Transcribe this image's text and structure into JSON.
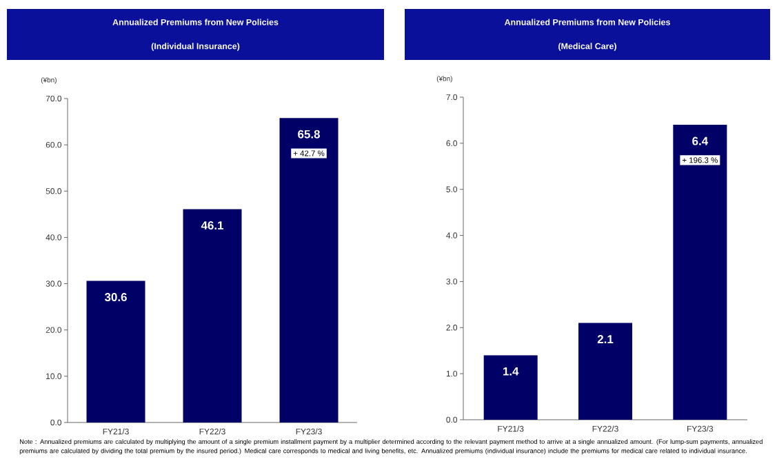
{
  "chart_data": [
    {
      "type": "bar",
      "title": "Annualized Premiums from New Policies",
      "subtitle": "(Individual Insurance)",
      "ylabel": "(¥bn)",
      "categories": [
        "FY21/3",
        "FY22/3",
        "FY23/3"
      ],
      "values": [
        30.6,
        46.1,
        65.8
      ],
      "color": "#000066",
      "ylim": [
        0,
        70
      ],
      "yticks": [
        {
          "value": 0,
          "label": "0.0"
        },
        {
          "value": 10,
          "label": "10.0"
        },
        {
          "value": 20,
          "label": "20.0"
        },
        {
          "value": 30,
          "label": "30.0"
        },
        {
          "value": 40,
          "label": "40.0"
        },
        {
          "value": 50,
          "label": "50.0"
        },
        {
          "value": 60,
          "label": "60.0"
        },
        {
          "value": 70,
          "label": "70.0"
        }
      ],
      "data_labels": true,
      "annotations": [
        "+ 42.7 %",
        "Note : Annualized premiums are calculated by multiplying the amount of a single premium installment payment by a multiplier determined according to the relevant payment method to arrive at a single annualized amount. (For lump-sum payments, annualized premiums are calculated by dividing the total premium by the insured period.) Medical care corresponds to medical and living benefits, etc. Annualized premiums (individual insurance) include the premiums for medical care related to individual insurance."
      ]
    },
    {
      "type": "bar",
      "title": "Annualized Premiums from New Policies",
      "subtitle": "(Medical Care)",
      "ylabel": "(¥bn)",
      "categories": [
        "FY21/3",
        "FY22/3",
        "FY23/3"
      ],
      "values": [
        1.4,
        2.1,
        6.4
      ],
      "color": "#000066",
      "ylim": [
        0,
        7
      ],
      "yticks": [
        {
          "value": 0,
          "label": "0.0"
        },
        {
          "value": 1,
          "label": "1.0"
        },
        {
          "value": 2,
          "label": "2.0"
        },
        {
          "value": 3,
          "label": "3.0"
        },
        {
          "value": 4,
          "label": "4.0"
        },
        {
          "value": 5,
          "label": "5.0"
        },
        {
          "value": 6,
          "label": "6.0"
        },
        {
          "value": 7,
          "label": "7.0"
        }
      ],
      "data_labels": true,
      "annotations": [
        "+ 196.3 %"
      ]
    }
  ]
}
